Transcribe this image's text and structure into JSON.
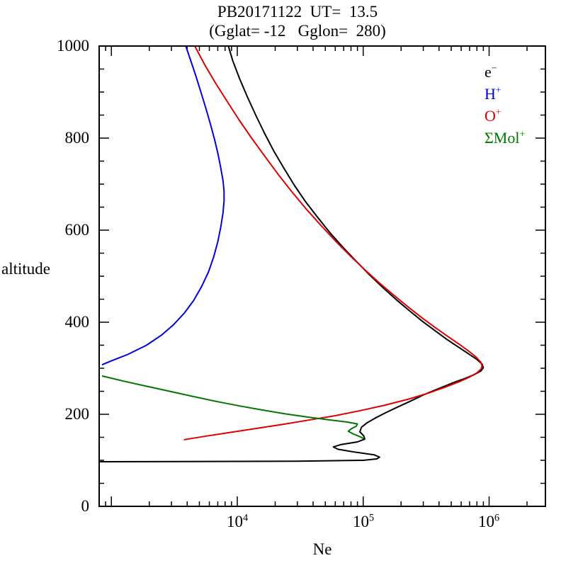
{
  "chart_data": {
    "type": "line",
    "title": "PB20171122  UT=  13.5",
    "subtitle": "(Gglat= -12   Gglon=  280)",
    "xlabel": "Ne",
    "ylabel": "altitude",
    "x_scale": "log",
    "xlim": [
      800,
      2800000
    ],
    "ylim": [
      0,
      1000
    ],
    "x_major_ticks": [
      1000,
      10000,
      100000,
      1000000
    ],
    "x_tick_labels": [
      {
        "base": "10",
        "exp": "4"
      },
      {
        "base": "10",
        "exp": "5"
      },
      {
        "base": "10",
        "exp": "6"
      }
    ],
    "y_major_ticks": [
      0,
      200,
      400,
      600,
      800,
      1000
    ],
    "y_minor_step": 50,
    "y_tick_labels": [
      "1000",
      "800",
      "600",
      "400",
      "200",
      "0"
    ],
    "grid": false,
    "legend_position": "top-right",
    "series": [
      {
        "id": "electron",
        "name": "e-",
        "legend": {
          "base": "e",
          "sup": "−"
        },
        "color": "#000000",
        "points": [
          [
            820,
            97
          ],
          [
            30000,
            98
          ],
          [
            100000,
            100
          ],
          [
            128000,
            103
          ],
          [
            135000,
            107
          ],
          [
            122000,
            112
          ],
          [
            85000,
            118
          ],
          [
            63000,
            124
          ],
          [
            58000,
            129
          ],
          [
            66000,
            134
          ],
          [
            90000,
            140
          ],
          [
            103000,
            146
          ],
          [
            101000,
            153
          ],
          [
            94000,
            162
          ],
          [
            97000,
            172
          ],
          [
            108000,
            182
          ],
          [
            125000,
            192
          ],
          [
            150000,
            203
          ],
          [
            185000,
            215
          ],
          [
            235000,
            228
          ],
          [
            300000,
            242
          ],
          [
            390000,
            255
          ],
          [
            500000,
            267
          ],
          [
            630000,
            277
          ],
          [
            760000,
            286
          ],
          [
            860000,
            294
          ],
          [
            900000,
            301
          ],
          [
            880000,
            309
          ],
          [
            800000,
            319
          ],
          [
            690000,
            331
          ],
          [
            570000,
            346
          ],
          [
            460000,
            363
          ],
          [
            370000,
            382
          ],
          [
            295000,
            402
          ],
          [
            235000,
            424
          ],
          [
            185000,
            448
          ],
          [
            145000,
            474
          ],
          [
            113000,
            502
          ],
          [
            89000,
            531
          ],
          [
            70000,
            561
          ],
          [
            55000,
            593
          ],
          [
            44000,
            626
          ],
          [
            35000,
            661
          ],
          [
            28500,
            697
          ],
          [
            23500,
            734
          ],
          [
            19500,
            772
          ],
          [
            16500,
            810
          ],
          [
            14000,
            850
          ],
          [
            12000,
            890
          ],
          [
            10400,
            930
          ],
          [
            9200,
            968
          ],
          [
            8500,
            1000
          ]
        ]
      },
      {
        "id": "h-plus",
        "name": "H+",
        "legend": {
          "base": "H",
          "sup": "+"
        },
        "color": "#0000e0",
        "points": [
          [
            850,
            308
          ],
          [
            1000,
            316
          ],
          [
            1350,
            330
          ],
          [
            1900,
            350
          ],
          [
            2500,
            372
          ],
          [
            3100,
            394
          ],
          [
            3800,
            420
          ],
          [
            4500,
            447
          ],
          [
            5200,
            477
          ],
          [
            5900,
            509
          ],
          [
            6500,
            542
          ],
          [
            7000,
            575
          ],
          [
            7400,
            607
          ],
          [
            7700,
            637
          ],
          [
            7850,
            663
          ],
          [
            7850,
            685
          ],
          [
            7700,
            708
          ],
          [
            7400,
            735
          ],
          [
            7050,
            764
          ],
          [
            6600,
            797
          ],
          [
            6100,
            832
          ],
          [
            5600,
            867
          ],
          [
            5100,
            903
          ],
          [
            4650,
            938
          ],
          [
            4250,
            970
          ],
          [
            3900,
            1000
          ]
        ]
      },
      {
        "id": "o-plus",
        "name": "O+",
        "legend": {
          "base": "O",
          "sup": "+"
        },
        "color": "#dd0000",
        "points": [
          [
            3800,
            145
          ],
          [
            5500,
            152
          ],
          [
            8500,
            160
          ],
          [
            14000,
            169
          ],
          [
            23000,
            178
          ],
          [
            38000,
            188
          ],
          [
            60000,
            197
          ],
          [
            95000,
            208
          ],
          [
            150000,
            220
          ],
          [
            230000,
            233
          ],
          [
            330000,
            246
          ],
          [
            450000,
            259
          ],
          [
            580000,
            271
          ],
          [
            700000,
            281
          ],
          [
            800000,
            290
          ],
          [
            860000,
            298
          ],
          [
            880000,
            305
          ],
          [
            860000,
            313
          ],
          [
            790000,
            324
          ],
          [
            690000,
            337
          ],
          [
            580000,
            352
          ],
          [
            470000,
            369
          ],
          [
            375000,
            388
          ],
          [
            295000,
            409
          ],
          [
            230000,
            432
          ],
          [
            178000,
            457
          ],
          [
            136000,
            484
          ],
          [
            104000,
            513
          ],
          [
            79000,
            544
          ],
          [
            60000,
            577
          ],
          [
            46000,
            611
          ],
          [
            35000,
            647
          ],
          [
            27000,
            684
          ],
          [
            21000,
            722
          ],
          [
            16500,
            761
          ],
          [
            13000,
            800
          ],
          [
            10300,
            840
          ],
          [
            8300,
            880
          ],
          [
            6700,
            920
          ],
          [
            5500,
            960
          ],
          [
            4600,
            1000
          ]
        ]
      },
      {
        "id": "mol-plus",
        "name": "SMol+",
        "legend": {
          "base": "ΣMol",
          "sup": "+"
        },
        "color": "#007700",
        "points": [
          [
            850,
            283
          ],
          [
            1250,
            272
          ],
          [
            1900,
            261
          ],
          [
            2900,
            250
          ],
          [
            4400,
            239
          ],
          [
            6800,
            228
          ],
          [
            10500,
            218
          ],
          [
            16000,
            209
          ],
          [
            24000,
            201
          ],
          [
            36000,
            194
          ],
          [
            53000,
            188
          ],
          [
            75000,
            183
          ],
          [
            90000,
            179
          ],
          [
            88000,
            174
          ],
          [
            80000,
            168
          ],
          [
            76000,
            163
          ],
          [
            84000,
            157
          ],
          [
            95000,
            151
          ],
          [
            101000,
            147
          ]
        ]
      }
    ]
  }
}
